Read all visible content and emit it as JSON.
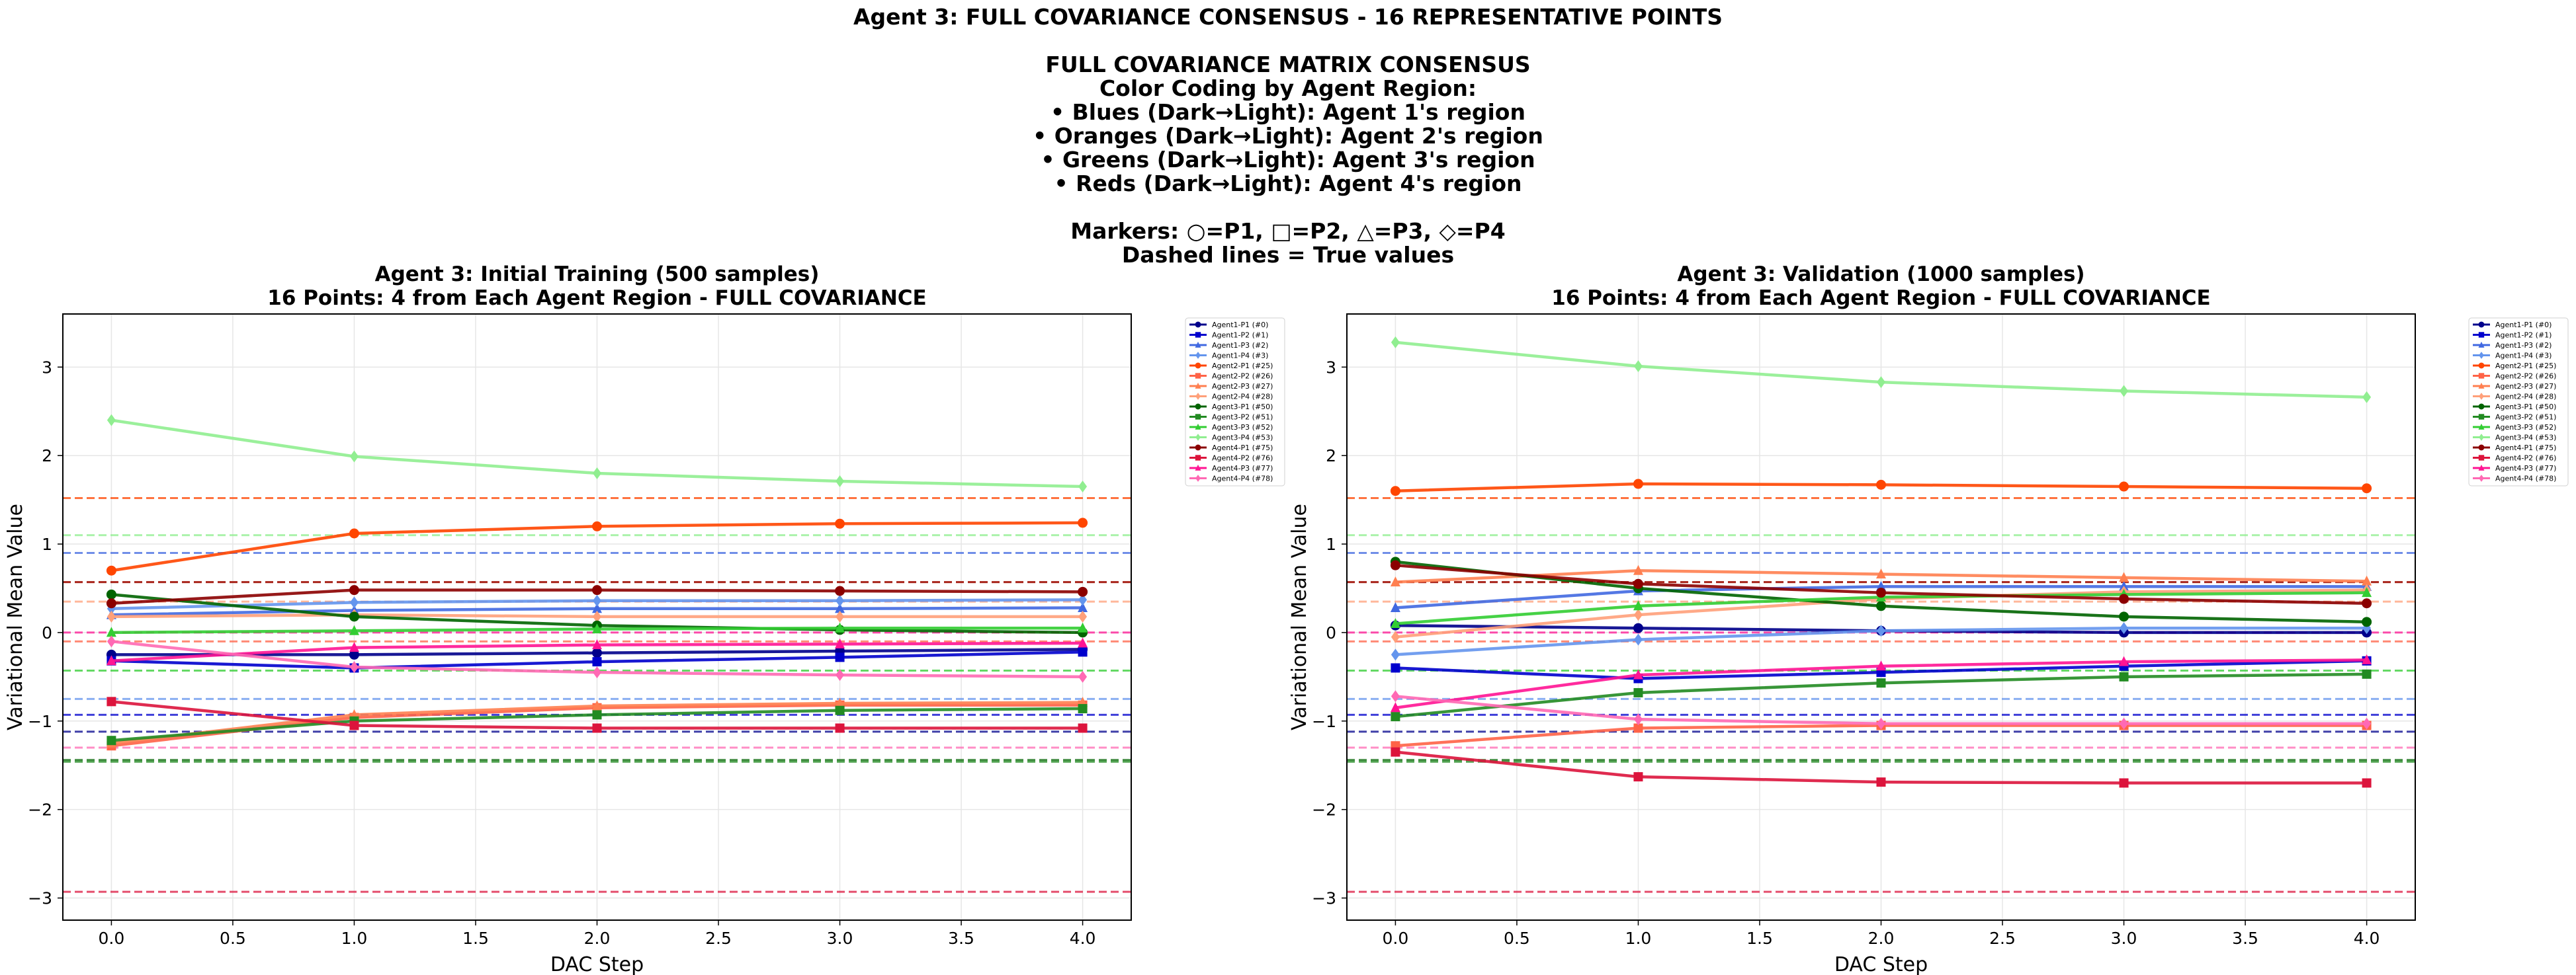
{
  "figure": {
    "title_lines": [
      "Agent 3: FULL COVARIANCE CONSENSUS - 16 REPRESENTATIVE POINTS",
      "",
      "FULL COVARIANCE MATRIX CONSENSUS",
      "Color Coding by Agent Region:",
      "• Blues (Dark→Light): Agent 1's region",
      "• Oranges (Dark→Light): Agent 2's region",
      "• Greens (Dark→Light): Agent 3's region",
      "• Reds (Dark→Light): Agent 4's region",
      "",
      "Markers: ○=P1, □=P2, △=P3, ◇=P4",
      "Dashed lines = True values"
    ]
  },
  "chart_data": [
    {
      "type": "line",
      "title": "Agent 3: Initial Training (500 samples)\n16 Points: 4 from Each Agent Region - FULL COVARIANCE",
      "xlabel": "DAC Step",
      "ylabel": "Variational Mean Value",
      "xlim": [
        -0.2,
        4.2
      ],
      "ylim": [
        -3.25,
        3.6
      ],
      "xticks": [
        "0.0",
        "0.5",
        "1.0",
        "1.5",
        "2.0",
        "2.5",
        "3.0",
        "3.5",
        "4.0"
      ],
      "yticks": [
        "−3",
        "−2",
        "−1",
        "0",
        "1",
        "2",
        "3"
      ],
      "grid": true,
      "legend_position": "outside-right",
      "x": [
        0,
        1,
        2,
        3,
        4
      ],
      "series": [
        {
          "name": "Agent1-P1 (#0)",
          "color": "#00008b",
          "marker": "circle",
          "values": [
            -0.25,
            -0.25,
            -0.23,
            -0.21,
            -0.19
          ],
          "true": -1.12
        },
        {
          "name": "Agent1-P2 (#1)",
          "color": "#0000cd",
          "marker": "square",
          "values": [
            -0.32,
            -0.4,
            -0.33,
            -0.28,
            -0.22
          ],
          "true": -0.93
        },
        {
          "name": "Agent1-P3 (#2)",
          "color": "#4169e1",
          "marker": "triangle",
          "values": [
            0.2,
            0.25,
            0.27,
            0.27,
            0.28
          ],
          "true": 0.9
        },
        {
          "name": "Agent1-P4 (#3)",
          "color": "#6495ed",
          "marker": "diamond",
          "values": [
            0.27,
            0.34,
            0.36,
            0.36,
            0.37
          ],
          "true": -0.75
        },
        {
          "name": "Agent2-P1 (#25)",
          "color": "#ff4500",
          "marker": "circle",
          "values": [
            0.7,
            1.12,
            1.2,
            1.23,
            1.24
          ],
          "true": 1.52
        },
        {
          "name": "Agent2-P2 (#26)",
          "color": "#ff6347",
          "marker": "square",
          "values": [
            -1.28,
            -0.96,
            -0.85,
            -0.82,
            -0.82
          ],
          "true": -0.1
        },
        {
          "name": "Agent2-P3 (#27)",
          "color": "#ff7f50",
          "marker": "triangle",
          "values": [
            -1.25,
            -0.93,
            -0.83,
            -0.8,
            -0.79
          ],
          "true": 0.57
        },
        {
          "name": "Agent2-P4 (#28)",
          "color": "#ffa07a",
          "marker": "diamond",
          "values": [
            0.18,
            0.2,
            0.18,
            0.18,
            0.18
          ],
          "true": 0.35
        },
        {
          "name": "Agent3-P1 (#50)",
          "color": "#006400",
          "marker": "circle",
          "values": [
            0.43,
            0.18,
            0.08,
            0.03,
            0.0
          ],
          "true": -1.44
        },
        {
          "name": "Agent3-P2 (#51)",
          "color": "#228b22",
          "marker": "square",
          "values": [
            -1.22,
            -1.0,
            -0.93,
            -0.88,
            -0.86
          ],
          "true": -1.46
        },
        {
          "name": "Agent3-P3 (#52)",
          "color": "#32cd32",
          "marker": "triangle",
          "values": [
            0.0,
            0.02,
            0.04,
            0.05,
            0.05
          ],
          "true": -0.43
        },
        {
          "name": "Agent3-P4 (#53)",
          "color": "#90ee90",
          "marker": "diamond",
          "values": [
            2.4,
            1.99,
            1.8,
            1.71,
            1.65
          ],
          "true": 1.1
        },
        {
          "name": "Agent4-P1 (#75)",
          "color": "#8b0000",
          "marker": "circle",
          "values": [
            0.33,
            0.48,
            0.48,
            0.47,
            0.46
          ],
          "true": 0.57
        },
        {
          "name": "Agent4-P2 (#76)",
          "color": "#dc143c",
          "marker": "square",
          "values": [
            -0.78,
            -1.05,
            -1.08,
            -1.08,
            -1.08
          ],
          "true": -2.93
        },
        {
          "name": "Agent4-P3 (#77)",
          "color": "#ff1493",
          "marker": "triangle",
          "values": [
            -0.32,
            -0.17,
            -0.14,
            -0.13,
            -0.12
          ],
          "true": 0.0
        },
        {
          "name": "Agent4-P4 (#78)",
          "color": "#ff69b4",
          "marker": "diamond",
          "values": [
            -0.1,
            -0.39,
            -0.45,
            -0.48,
            -0.5
          ],
          "true": -1.3
        }
      ]
    },
    {
      "type": "line",
      "title": "Agent 3: Validation (1000 samples)\n16 Points: 4 from Each Agent Region - FULL COVARIANCE",
      "xlabel": "DAC Step",
      "ylabel": "Variational Mean Value",
      "xlim": [
        -0.2,
        4.2
      ],
      "ylim": [
        -3.25,
        3.6
      ],
      "xticks": [
        "0.0",
        "0.5",
        "1.0",
        "1.5",
        "2.0",
        "2.5",
        "3.0",
        "3.5",
        "4.0"
      ],
      "yticks": [
        "−3",
        "−2",
        "−1",
        "0",
        "1",
        "2",
        "3"
      ],
      "grid": true,
      "legend_position": "outside-right",
      "x": [
        0,
        1,
        2,
        3,
        4
      ],
      "series": [
        {
          "name": "Agent1-P1 (#0)",
          "color": "#00008b",
          "marker": "circle",
          "values": [
            0.08,
            0.05,
            0.02,
            0.0,
            0.0
          ],
          "true": -1.12
        },
        {
          "name": "Agent1-P2 (#1)",
          "color": "#0000cd",
          "marker": "square",
          "values": [
            -0.4,
            -0.52,
            -0.45,
            -0.38,
            -0.32
          ],
          "true": -0.93
        },
        {
          "name": "Agent1-P3 (#2)",
          "color": "#4169e1",
          "marker": "triangle",
          "values": [
            0.28,
            0.47,
            0.52,
            0.52,
            0.52
          ],
          "true": 0.9
        },
        {
          "name": "Agent1-P4 (#3)",
          "color": "#6495ed",
          "marker": "diamond",
          "values": [
            -0.25,
            -0.08,
            0.02,
            0.05,
            0.05
          ],
          "true": -0.75
        },
        {
          "name": "Agent2-P1 (#25)",
          "color": "#ff4500",
          "marker": "circle",
          "values": [
            1.6,
            1.68,
            1.67,
            1.65,
            1.63
          ],
          "true": 1.52
        },
        {
          "name": "Agent2-P2 (#26)",
          "color": "#ff6347",
          "marker": "square",
          "values": [
            -1.28,
            -1.08,
            -1.05,
            -1.05,
            -1.05
          ],
          "true": -0.1
        },
        {
          "name": "Agent2-P3 (#27)",
          "color": "#ff7f50",
          "marker": "triangle",
          "values": [
            0.57,
            0.7,
            0.66,
            0.62,
            0.58
          ],
          "true": 0.57
        },
        {
          "name": "Agent2-P4 (#28)",
          "color": "#ffa07a",
          "marker": "diamond",
          "values": [
            -0.05,
            0.2,
            0.38,
            0.46,
            0.48
          ],
          "true": 0.35
        },
        {
          "name": "Agent3-P1 (#50)",
          "color": "#006400",
          "marker": "circle",
          "values": [
            0.8,
            0.5,
            0.3,
            0.18,
            0.12
          ],
          "true": -1.44
        },
        {
          "name": "Agent3-P2 (#51)",
          "color": "#228b22",
          "marker": "square",
          "values": [
            -0.95,
            -0.68,
            -0.57,
            -0.5,
            -0.47
          ],
          "true": -1.46
        },
        {
          "name": "Agent3-P3 (#52)",
          "color": "#32cd32",
          "marker": "triangle",
          "values": [
            0.1,
            0.3,
            0.4,
            0.43,
            0.45
          ],
          "true": -0.43
        },
        {
          "name": "Agent3-P4 (#53)",
          "color": "#90ee90",
          "marker": "diamond",
          "values": [
            3.28,
            3.01,
            2.83,
            2.73,
            2.66
          ],
          "true": 1.1
        },
        {
          "name": "Agent4-P1 (#75)",
          "color": "#8b0000",
          "marker": "circle",
          "values": [
            0.76,
            0.55,
            0.45,
            0.38,
            0.33
          ],
          "true": 0.57
        },
        {
          "name": "Agent4-P2 (#76)",
          "color": "#dc143c",
          "marker": "square",
          "values": [
            -1.35,
            -1.63,
            -1.69,
            -1.7,
            -1.7
          ],
          "true": -2.93
        },
        {
          "name": "Agent4-P3 (#77)",
          "color": "#ff1493",
          "marker": "triangle",
          "values": [
            -0.85,
            -0.48,
            -0.38,
            -0.33,
            -0.31
          ],
          "true": 0.0
        },
        {
          "name": "Agent4-P4 (#78)",
          "color": "#ff69b4",
          "marker": "diamond",
          "values": [
            -0.72,
            -0.98,
            -1.03,
            -1.03,
            -1.03
          ],
          "true": -1.3
        }
      ]
    }
  ]
}
